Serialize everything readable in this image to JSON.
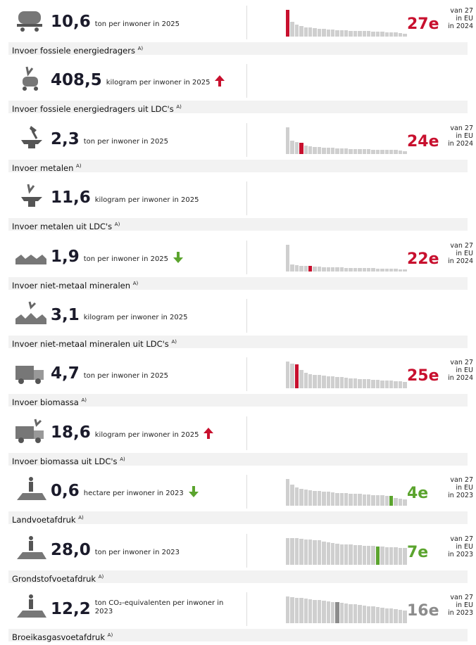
{
  "rows": [
    {
      "value": "10,6",
      "unit": "ton per inwoner in 2025",
      "label": "Invoer fossiele energiedragers",
      "note": "A)",
      "rank": "27e",
      "rank_note": [
        "van 27",
        "in EU",
        "in 2024"
      ],
      "color": "#c8102e",
      "highlight": 0,
      "bars": [
        100,
        55,
        45,
        40,
        35,
        33,
        32,
        30,
        28,
        27,
        26,
        25,
        24,
        23,
        22,
        22,
        21,
        20,
        20,
        19,
        18,
        18,
        17,
        16,
        15,
        14,
        10
      ]
    },
    {
      "value": "408,5",
      "unit": "kilogram per inwoner in 2025",
      "label": "Invoer fossiele energiedragers uit LDC's",
      "note": "A)",
      "trend": "up"
    },
    {
      "value": "2,3",
      "unit": "ton per inwoner in 2025",
      "label": "Invoer metalen",
      "note": "A)",
      "rank": "24e",
      "rank_note": [
        "van 27",
        "in EU",
        "in 2024"
      ],
      "color": "#c8102e",
      "highlight": 3,
      "bars": [
        100,
        50,
        45,
        42,
        30,
        28,
        26,
        25,
        24,
        23,
        22,
        21,
        20,
        20,
        19,
        18,
        18,
        17,
        17,
        16,
        16,
        15,
        15,
        14,
        14,
        13,
        10
      ]
    },
    {
      "value": "11,6",
      "unit": "kilogram per inwoner in 2025",
      "label": "Invoer metalen uit LDC's",
      "note": "A)"
    },
    {
      "value": "1,9",
      "unit": "ton per inwoner in 2025",
      "label": "Invoer niet-metaal mineralen",
      "note": "A)",
      "trend": "down",
      "rank": "22e",
      "rank_note": [
        "van 27",
        "in EU",
        "in 2024"
      ],
      "color": "#c8102e",
      "highlight": 5,
      "bars": [
        100,
        25,
        22,
        21,
        20,
        19,
        18,
        17,
        16,
        15,
        15,
        14,
        14,
        13,
        13,
        12,
        12,
        12,
        11,
        11,
        10,
        10,
        10,
        9,
        9,
        8,
        7
      ]
    },
    {
      "value": "3,1",
      "unit": "kilogram per inwoner in 2025",
      "label": "Invoer niet-metaal mineralen uit LDC's",
      "note": "A)"
    },
    {
      "value": "4,7",
      "unit": "ton per inwoner in 2025",
      "label": "Invoer biomassa",
      "note": "A)",
      "rank": "25e",
      "rank_note": [
        "van 27",
        "in EU",
        "in 2024"
      ],
      "color": "#c8102e",
      "highlight": 2,
      "bars": [
        100,
        92,
        90,
        70,
        60,
        55,
        52,
        50,
        48,
        46,
        45,
        44,
        42,
        40,
        38,
        37,
        36,
        35,
        34,
        33,
        32,
        31,
        30,
        29,
        28,
        27,
        25
      ]
    },
    {
      "value": "18,6",
      "unit": "kilogram per inwoner in 2025",
      "label": "Invoer biomassa uit LDC's",
      "note": "A)",
      "trend": "up"
    },
    {
      "value": "0,6",
      "unit": "hectare per inwoner in 2023",
      "label": "Landvoetafdruk",
      "note": "A)",
      "trend": "down",
      "rank": "4e",
      "rank_note": [
        "van 27",
        "in EU",
        "in 2023"
      ],
      "color": "#5ba42e",
      "highlight": 23,
      "bars": [
        100,
        80,
        70,
        65,
        62,
        58,
        56,
        55,
        53,
        52,
        50,
        49,
        48,
        47,
        46,
        45,
        44,
        43,
        42,
        41,
        40,
        39,
        38,
        37,
        30,
        28,
        25
      ]
    },
    {
      "value": "28,0",
      "unit": "ton per inwoner in 2023",
      "label": "Grondstofvoetafdruk",
      "note": "A)",
      "rank": "7e",
      "rank_note": [
        "van 27",
        "in EU",
        "in 2023"
      ],
      "color": "#5ba42e",
      "highlight": 20,
      "bars": [
        100,
        100,
        98,
        96,
        95,
        94,
        92,
        90,
        85,
        82,
        80,
        78,
        76,
        75,
        74,
        73,
        72,
        71,
        70,
        69,
        68,
        67,
        66,
        65,
        64,
        63,
        62
      ]
    },
    {
      "value": "12,2",
      "unit": "ton CO₂-equivalenten per inwoner in 2023",
      "label": "Broeikasgasvoetafdruk",
      "note": "A)",
      "rank": "16e",
      "rank_note": [
        "van 27",
        "in EU",
        "in 2023"
      ],
      "color": "#8c8c8c",
      "highlight": 11,
      "bars": [
        100,
        98,
        96,
        94,
        92,
        90,
        88,
        86,
        84,
        82,
        80,
        78,
        76,
        74,
        72,
        70,
        68,
        66,
        64,
        62,
        60,
        58,
        56,
        54,
        52,
        50,
        48
      ]
    }
  ]
}
